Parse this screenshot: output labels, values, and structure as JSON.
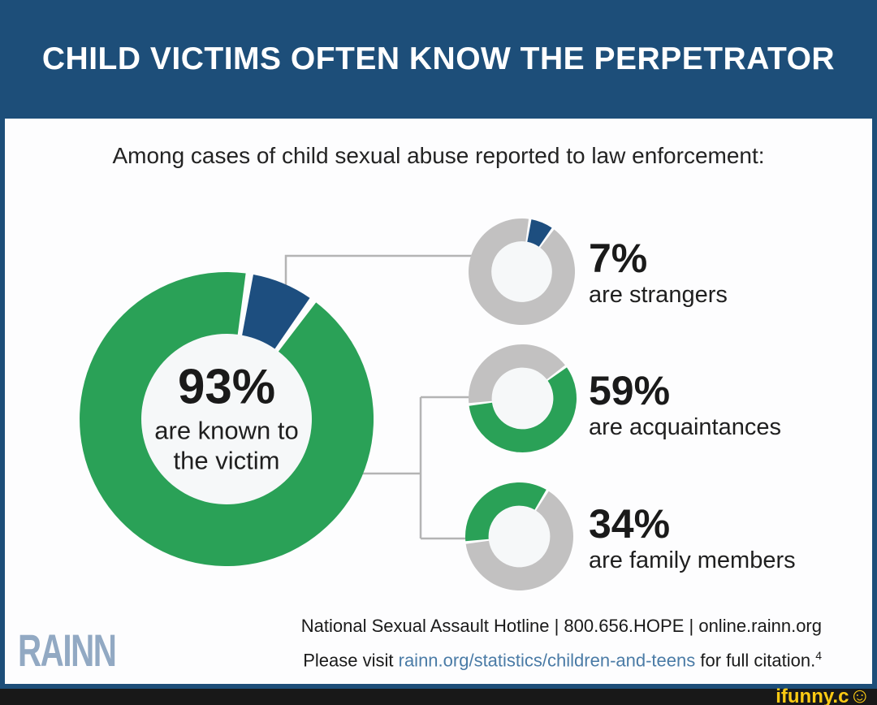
{
  "header": {
    "title": "CHILD VICTIMS OFTEN KNOW THE PERPETRATOR"
  },
  "subtitle": "Among cases of child sexual abuse reported to law enforcement:",
  "colors": {
    "green": "#2aa157",
    "blue": "#1d4e7f",
    "gray": "#c2c1c1",
    "header_bg": "#1d4e79",
    "hole": "#f6f8f9",
    "connector": "#b4b4b4",
    "link": "#4a7ba6",
    "logo": "#92a9c3",
    "watermark_yellow": "#fbca13",
    "bar_bg": "#181818"
  },
  "chart_data": [
    {
      "type": "donut",
      "id": "known-to-victim",
      "value": 93,
      "label_pct": "93%",
      "center_line1": "are known to",
      "center_line2": "the victim",
      "inner_ratio": 0.58,
      "segments": [
        {
          "name": "known-to-victim",
          "value": 93,
          "color_key": "green",
          "start": 37.5,
          "end": 367.5
        },
        {
          "name": "strangers",
          "value": 7,
          "color_key": "blue",
          "start": 10.5,
          "end": 34.5
        }
      ]
    },
    {
      "type": "donut",
      "id": "strangers",
      "value": 7,
      "label_pct": "7%",
      "label": "are strangers",
      "inner_ratio": 0.57,
      "segments": [
        {
          "name": "other",
          "value": 93,
          "color_key": "gray",
          "start": 37.5,
          "end": 367.5
        },
        {
          "name": "strangers",
          "value": 7,
          "color_key": "blue",
          "start": 10.5,
          "end": 34.5
        }
      ]
    },
    {
      "type": "donut",
      "id": "acquaintances",
      "value": 59,
      "label_pct": "59%",
      "label": "are acquaintances",
      "inner_ratio": 0.57,
      "segments": [
        {
          "name": "other",
          "value": 41,
          "color_key": "gray",
          "start": 265,
          "end": 412
        },
        {
          "name": "acquaintances",
          "value": 59,
          "color_key": "green",
          "start": 55,
          "end": 262
        }
      ]
    },
    {
      "type": "donut",
      "id": "family-members",
      "value": 34,
      "label_pct": "34%",
      "label": "are family members",
      "inner_ratio": 0.57,
      "segments": [
        {
          "name": "other",
          "value": 66,
          "color_key": "gray",
          "start": 33,
          "end": 262
        },
        {
          "name": "family-members",
          "value": 34,
          "color_key": "green",
          "start": 265,
          "end": 390
        }
      ]
    }
  ],
  "footer": {
    "logo": "RAINN",
    "hotline": "National Sexual Assault Hotline | 800.656.HOPE | online.rainn.org",
    "citation_prefix": "Please visit ",
    "citation_link": "rainn.org/statistics/children-and-teens",
    "citation_suffix": " for full citation.",
    "citation_superscript": "4"
  },
  "watermark": {
    "text": "ifunny.c",
    "smiley": "☺"
  }
}
